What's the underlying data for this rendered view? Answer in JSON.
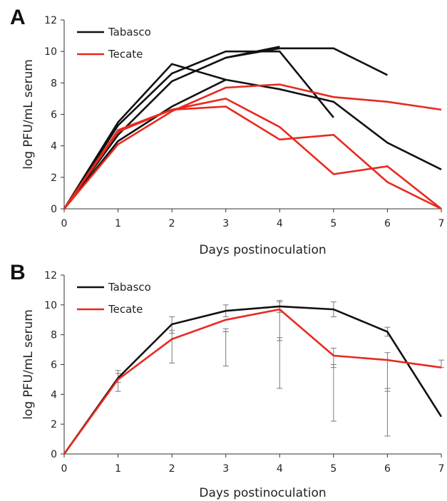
{
  "figure": {
    "colors": {
      "tabasco": "#111111",
      "tecate": "#e8291f"
    }
  },
  "chart_data": [
    {
      "panel": "A",
      "type": "line",
      "xlabel": "Days postinoculation",
      "ylabel": "log PFU/mL serum",
      "xlim": [
        0,
        7
      ],
      "ylim": [
        0,
        12
      ],
      "x_ticks": [
        0,
        1,
        2,
        3,
        4,
        5,
        6,
        7
      ],
      "y_ticks": [
        0,
        2,
        4,
        6,
        8,
        10,
        12
      ],
      "legend": [
        "Tabasco",
        "Tecate"
      ],
      "legend_position": "top-left",
      "grid": false,
      "series": [
        {
          "group": "Tabasco",
          "color": "#111111",
          "points": [
            [
              0,
              0
            ],
            [
              1,
              5.5
            ],
            [
              2,
              9.2
            ],
            [
              3,
              8.2
            ],
            [
              4,
              7.6
            ],
            [
              5,
              6.8
            ],
            [
              6,
              4.2
            ],
            [
              7,
              2.5
            ]
          ]
        },
        {
          "group": "Tabasco",
          "color": "#111111",
          "points": [
            [
              0,
              0
            ],
            [
              1,
              5.3
            ],
            [
              2,
              8.6
            ],
            [
              3,
              10.0
            ],
            [
              4,
              10.0
            ],
            [
              5,
              5.8
            ]
          ]
        },
        {
          "group": "Tabasco",
          "color": "#111111",
          "points": [
            [
              0,
              0
            ],
            [
              1,
              4.7
            ],
            [
              2,
              8.1
            ],
            [
              3,
              9.6
            ],
            [
              4,
              10.3
            ]
          ]
        },
        {
          "group": "Tabasco",
          "color": "#111111",
          "points": [
            [
              0,
              0
            ],
            [
              1,
              4.3
            ],
            [
              2,
              6.5
            ],
            [
              3,
              8.2
            ]
          ]
        },
        {
          "group": "Tabasco",
          "color": "#111111",
          "points": [
            [
              3,
              9.6
            ],
            [
              4,
              10.2
            ],
            [
              5,
              10.2
            ],
            [
              6,
              8.5
            ]
          ]
        },
        {
          "group": "Tecate",
          "color": "#e8291f",
          "points": [
            [
              0,
              0
            ],
            [
              1,
              4.1
            ],
            [
              2,
              6.2
            ],
            [
              3,
              7.7
            ],
            [
              4,
              7.9
            ],
            [
              5,
              7.1
            ],
            [
              6,
              6.8
            ],
            [
              7,
              6.3
            ]
          ]
        },
        {
          "group": "Tecate",
          "color": "#e8291f",
          "points": [
            [
              0,
              0
            ],
            [
              1,
              4.9
            ],
            [
              2,
              6.3
            ],
            [
              3,
              6.5
            ],
            [
              4,
              4.4
            ],
            [
              5,
              4.7
            ],
            [
              6,
              1.7
            ],
            [
              7,
              0
            ]
          ]
        },
        {
          "group": "Tecate",
          "color": "#e8291f",
          "points": [
            [
              0,
              0
            ],
            [
              1,
              5.0
            ],
            [
              2,
              6.3
            ],
            [
              3,
              7.0
            ],
            [
              4,
              5.2
            ],
            [
              5,
              2.2
            ],
            [
              6,
              2.7
            ],
            [
              7,
              0
            ]
          ]
        }
      ]
    },
    {
      "panel": "B",
      "type": "line",
      "xlabel": "Days postinoculation",
      "ylabel": "log PFU/mL serum",
      "xlim": [
        0,
        7
      ],
      "ylim": [
        0,
        12
      ],
      "x_ticks": [
        0,
        1,
        2,
        3,
        4,
        5,
        6,
        7
      ],
      "y_ticks": [
        0,
        2,
        4,
        6,
        8,
        10,
        12
      ],
      "legend": [
        "Tabasco",
        "Tecate"
      ],
      "legend_position": "top-left",
      "grid": false,
      "series": [
        {
          "name": "Tabasco",
          "color": "#111111",
          "x": [
            0,
            1,
            2,
            3,
            4,
            5,
            6,
            7
          ],
          "values": [
            0,
            5.1,
            8.7,
            9.6,
            9.9,
            9.7,
            8.2,
            2.5
          ],
          "error_bars": [
            null,
            [
              4.8,
              5.4
            ],
            [
              8.1,
              9.2
            ],
            [
              9.2,
              10.0
            ],
            [
              9.5,
              10.3
            ],
            [
              9.2,
              10.2
            ],
            [
              7.9,
              8.5
            ],
            null
          ]
        },
        {
          "name": "Tecate",
          "color": "#e8291f",
          "x": [
            0,
            1,
            2,
            3,
            4,
            5,
            6,
            7
          ],
          "values": [
            0,
            5.0,
            7.7,
            9.0,
            9.7,
            6.6,
            6.3,
            5.8
          ],
          "error_bars": [
            null,
            [
              4.2,
              5.6
            ],
            [
              6.1,
              8.3
            ],
            [
              5.9,
              8.2
            ],
            [
              4.4,
              10.2
            ],
            [
              2.2,
              7.1
            ],
            [
              1.2,
              6.8
            ],
            [
              5.8,
              6.3
            ]
          ]
        },
        {
          "name": "",
          "color": "#7a7a7a",
          "x": [
            3,
            4,
            5,
            6
          ],
          "values": [
            8.2,
            7.6,
            5.8,
            4.2
          ],
          "error_bars": [
            [
              8.2,
              8.4
            ],
            [
              7.6,
              7.8
            ],
            [
              5.8,
              6.0
            ],
            [
              4.2,
              4.4
            ]
          ]
        }
      ]
    }
  ]
}
